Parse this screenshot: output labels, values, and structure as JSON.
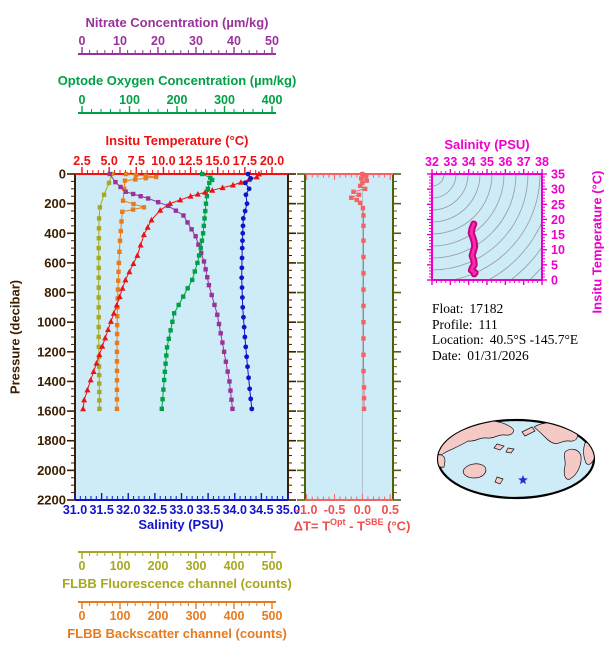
{
  "figure": {
    "background": "#ffffff"
  },
  "labels": {
    "nitrate": "Nitrate Concentration (µm/kg)",
    "oxygen": "Optode Oxygen Concentration (µm/kg)",
    "temperature": "Insitu Temperature (°C)",
    "pressure": "Pressure (decibar)",
    "salinity": "Salinity (PSU)",
    "fluorescence": "FLBB Fluorescence channel (counts)",
    "backscatter": "FLBB Backscatter channel (counts)",
    "ts_title": "Salinity (PSU)",
    "ts_right": "Insitu Temperature (°C)"
  },
  "delta_label": {
    "p1": "ΔT= T",
    "s1": "Opt",
    "p2": " - T",
    "s2": "SBE",
    "p3": " (°C)"
  },
  "info": {
    "rows": [
      {
        "label": "Float:",
        "value": "17182"
      },
      {
        "label": "Profile:",
        "value": "111"
      },
      {
        "label": "Location:",
        "value": "40.5°S  -145.7°E"
      },
      {
        "label": "Date:",
        "value": "01/31/2026"
      }
    ]
  },
  "map": {
    "land_color": "#f5c9c5",
    "ocean_color": "#cdecf8",
    "outline_color": "#000000",
    "marker": "star",
    "marker_color": "#2b2bd5"
  },
  "chart_data": [
    {
      "type": "line",
      "title": "Float profile vs pressure",
      "ylabel": "Pressure (decibar)",
      "ylim": [
        0,
        2200
      ],
      "yticks": [
        "0",
        "200",
        "400",
        "600",
        "800",
        "1000",
        "1200",
        "1400",
        "1600",
        "1800",
        "2000",
        "2200"
      ],
      "ylabel_color": "#3c1e00",
      "background": "#cdecf8",
      "series": [
        {
          "name": "FLBB Fluorescence channel (counts)",
          "axis": "below-1",
          "color": "#a8a81e",
          "marker": "square",
          "xlim": [
            0,
            500
          ],
          "xticks": [
            "0",
            "100",
            "200",
            "300",
            "400",
            "500"
          ],
          "points": [
            [
              0,
              79
            ],
            [
              60,
              71
            ],
            [
              140,
              58
            ],
            [
              225,
              47
            ],
            [
              300,
              45
            ],
            [
              500,
              44
            ],
            [
              700,
              44
            ],
            [
              900,
              44
            ],
            [
              1100,
              44
            ],
            [
              1300,
              45
            ],
            [
              1585,
              46
            ]
          ]
        },
        {
          "name": "FLBB Backscatter channel (counts)",
          "axis": "below-2",
          "color": "#e87a1e",
          "marker": "square",
          "xlim": [
            0,
            500
          ],
          "xticks": [
            "0",
            "100",
            "200",
            "300",
            "400",
            "500"
          ],
          "points": [
            [
              0,
              116
            ],
            [
              20,
              195
            ],
            [
              45,
              113
            ],
            [
              100,
              111
            ],
            [
              180,
              108
            ],
            [
              225,
              163
            ],
            [
              255,
              106
            ],
            [
              320,
              104
            ],
            [
              450,
              100
            ],
            [
              600,
              97
            ],
            [
              900,
              93
            ],
            [
              1200,
              92
            ],
            [
              1585,
              92
            ]
          ]
        },
        {
          "name": "Nitrate Concentration (µm/kg)",
          "axis": "top-outer",
          "color": "#993399",
          "marker": "square",
          "xlim": [
            0,
            50
          ],
          "xticks": [
            "0",
            "10",
            "20",
            "30",
            "40",
            "50"
          ],
          "points": [
            [
              0,
              7.3
            ],
            [
              55,
              8.8
            ],
            [
              120,
              11.5
            ],
            [
              165,
              17.4
            ],
            [
              215,
              22.7
            ],
            [
              280,
              26.7
            ],
            [
              420,
              29.9
            ],
            [
              590,
              32.1
            ],
            [
              750,
              33.4
            ],
            [
              950,
              35.6
            ],
            [
              1200,
              37.4
            ],
            [
              1400,
              38.8
            ],
            [
              1585,
              39.6
            ]
          ]
        },
        {
          "name": "Optode Oxygen Concentration (µm/kg)",
          "axis": "top-middle",
          "color": "#00a046",
          "marker": "square",
          "xlim": [
            0,
            400
          ],
          "xticks": [
            "0",
            "100",
            "200",
            "300",
            "400"
          ],
          "points": [
            [
              0,
              253
            ],
            [
              25,
              270
            ],
            [
              40,
              274
            ],
            [
              60,
              268
            ],
            [
              100,
              265
            ],
            [
              150,
              263
            ],
            [
              200,
              261
            ],
            [
              300,
              258
            ],
            [
              400,
              255
            ],
            [
              500,
              250
            ],
            [
              600,
              243
            ],
            [
              715,
              232
            ],
            [
              940,
              194
            ],
            [
              1170,
              179
            ],
            [
              1390,
              173
            ],
            [
              1585,
              168
            ]
          ]
        },
        {
          "name": "Insitu Temperature (°C)",
          "axis": "top-inner",
          "color": "#ee1111",
          "marker": "triangle",
          "xlim": [
            2.5,
            20.0
          ],
          "xticks": [
            "2.5",
            "5.0",
            "7.5",
            "10.0",
            "12.5",
            "15.0",
            "17.5",
            "20.0"
          ],
          "points": [
            [
              0,
              18.8
            ],
            [
              20,
              18.6
            ],
            [
              75,
              16.4
            ],
            [
              110,
              14.5
            ],
            [
              150,
              12.5
            ],
            [
              200,
              10.6
            ],
            [
              245,
              9.7
            ],
            [
              310,
              8.9
            ],
            [
              410,
              8.2
            ],
            [
              550,
              7.6
            ],
            [
              715,
              6.5
            ],
            [
              885,
              5.7
            ],
            [
              1050,
              4.9
            ],
            [
              1220,
              4.1
            ],
            [
              1390,
              3.3
            ],
            [
              1525,
              2.7
            ],
            [
              1585,
              2.6
            ]
          ]
        },
        {
          "name": "Salinity (PSU)",
          "axis": "bottom",
          "color": "#1212cc",
          "marker": "circle",
          "xlim": [
            31.0,
            35.0
          ],
          "xticks": [
            "31.0",
            "31.5",
            "32.0",
            "32.5",
            "33.0",
            "33.5",
            "34.0",
            "34.5",
            "35.0"
          ],
          "points": [
            [
              0,
              34.25
            ],
            [
              30,
              34.3
            ],
            [
              60,
              34.2
            ],
            [
              100,
              34.27
            ],
            [
              140,
              34.21
            ],
            [
              200,
              34.23
            ],
            [
              300,
              34.16
            ],
            [
              400,
              34.15
            ],
            [
              500,
              34.14
            ],
            [
              700,
              34.13
            ],
            [
              900,
              34.15
            ],
            [
              1100,
              34.19
            ],
            [
              1300,
              34.24
            ],
            [
              1450,
              34.28
            ],
            [
              1585,
              34.32
            ]
          ]
        }
      ]
    },
    {
      "type": "line",
      "title": "Temperature difference vs pressure",
      "xlabel": "ΔT= T^Opt - T^SBE (°C)",
      "xlim": [
        -1.03,
        0.55
      ],
      "xticks": [
        "-1.0",
        "-0.5",
        "0.0",
        "0.5"
      ],
      "ylim": [
        0,
        2200
      ],
      "color": "#f56262",
      "frame_color": "#50610b",
      "background": "#cdecf8",
      "zero_line": true,
      "points": [
        [
          0,
          0.0
        ],
        [
          15,
          0.06
        ],
        [
          30,
          -0.02
        ],
        [
          45,
          0.08
        ],
        [
          60,
          0.0
        ],
        [
          80,
          -0.04
        ],
        [
          100,
          0.05
        ],
        [
          120,
          -0.16
        ],
        [
          140,
          -0.06
        ],
        [
          160,
          -0.2
        ],
        [
          175,
          -0.1
        ],
        [
          195,
          -0.04
        ],
        [
          230,
          0.01
        ],
        [
          280,
          0.02
        ],
        [
          350,
          0.02
        ],
        [
          450,
          0.02
        ],
        [
          560,
          0.02
        ],
        [
          670,
          0.02
        ],
        [
          780,
          0.02
        ],
        [
          890,
          0.02
        ],
        [
          1000,
          0.02
        ],
        [
          1110,
          0.02
        ],
        [
          1220,
          0.02
        ],
        [
          1330,
          0.02
        ],
        [
          1440,
          0.03
        ],
        [
          1585,
          0.03
        ]
      ]
    },
    {
      "type": "scatter",
      "title": "Salinity (PSU)",
      "ylabel_right": "Insitu Temperature (°C)",
      "xlim": [
        32,
        38
      ],
      "ylim": [
        0,
        35
      ],
      "xticks": [
        "32",
        "33",
        "34",
        "35",
        "36",
        "37",
        "38"
      ],
      "yticks": [
        "0",
        "5",
        "10",
        "15",
        "20",
        "25",
        "30",
        "35"
      ],
      "frame_color": "#ee00cc",
      "curve_color": "#e6059c",
      "contour_color": "#999999",
      "background": "#cdecf8",
      "isopycnal_contours": 13,
      "points": [
        [
          34.28,
          18.5
        ],
        [
          34.18,
          17.0
        ],
        [
          34.14,
          15.5
        ],
        [
          34.23,
          14.0
        ],
        [
          34.3,
          12.5
        ],
        [
          34.33,
          11.0
        ],
        [
          34.26,
          9.5
        ],
        [
          34.19,
          8.0
        ],
        [
          34.28,
          6.5
        ],
        [
          34.3,
          5.0
        ],
        [
          34.2,
          4.0
        ],
        [
          34.15,
          3.2
        ],
        [
          34.26,
          2.8
        ],
        [
          34.35,
          2.4
        ],
        [
          34.3,
          2.0
        ]
      ]
    }
  ]
}
